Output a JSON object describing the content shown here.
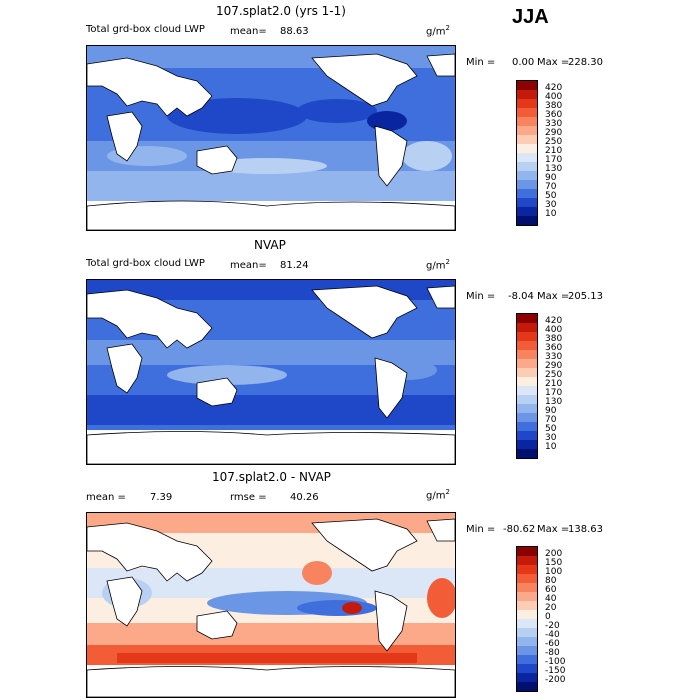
{
  "season": "JJA",
  "panels": [
    {
      "title": "107.splat2.0 (yrs 1-1)",
      "field_label": "Total grd-box cloud LWP",
      "mean_label": "mean=",
      "mean": "88.63",
      "units": "g/m",
      "units_sup": "2",
      "min_label": "Min =",
      "min": "0.00",
      "max_label": "Max =",
      "max": "228.30",
      "levels": [
        "420",
        "400",
        "380",
        "360",
        "330",
        "290",
        "250",
        "210",
        "170",
        "130",
        "90",
        "70",
        "50",
        "30",
        "10"
      ],
      "colors": [
        "#8b0000",
        "#c41a0a",
        "#e5381a",
        "#f25c36",
        "#f8845f",
        "#fba988",
        "#fdcdb3",
        "#fdeee2",
        "#dbe7f7",
        "#b8d1f2",
        "#91b5ec",
        "#6b96e6",
        "#3f6fdd",
        "#1f48c8",
        "#0a25a0",
        "#00106e"
      ]
    },
    {
      "title": "NVAP",
      "field_label": "Total grd-box cloud LWP",
      "mean_label": "mean=",
      "mean": "81.24",
      "units": "g/m",
      "units_sup": "2",
      "min_label": "Min =",
      "min": "-8.04",
      "max_label": "Max =",
      "max": "205.13",
      "levels": [
        "420",
        "400",
        "380",
        "360",
        "330",
        "290",
        "250",
        "210",
        "170",
        "130",
        "90",
        "70",
        "50",
        "30",
        "10"
      ],
      "colors": [
        "#8b0000",
        "#c41a0a",
        "#e5381a",
        "#f25c36",
        "#f8845f",
        "#fba988",
        "#fdcdb3",
        "#fdeee2",
        "#dbe7f7",
        "#b8d1f2",
        "#91b5ec",
        "#6b96e6",
        "#3f6fdd",
        "#1f48c8",
        "#0a25a0",
        "#00106e"
      ]
    },
    {
      "title": "107.splat2.0 - NVAP",
      "mean_label": "mean =",
      "mean": "7.39",
      "rmse_label": "rmse =",
      "rmse": "40.26",
      "units": "g/m",
      "units_sup": "2",
      "min_label": "Min =",
      "min": "-80.62",
      "max_label": "Max =",
      "max": "138.63",
      "levels": [
        "200",
        "150",
        "100",
        "80",
        "60",
        "40",
        "20",
        "0",
        "-20",
        "-40",
        "-60",
        "-80",
        "-100",
        "-150",
        "-200"
      ],
      "colors": [
        "#8b0000",
        "#c41a0a",
        "#e5381a",
        "#f25c36",
        "#f8845f",
        "#fba988",
        "#fdcdb3",
        "#fdeee2",
        "#dbe7f7",
        "#b8d1f2",
        "#91b5ec",
        "#6b96e6",
        "#3f6fdd",
        "#1f48c8",
        "#0a25a0",
        "#00106e"
      ]
    }
  ]
}
